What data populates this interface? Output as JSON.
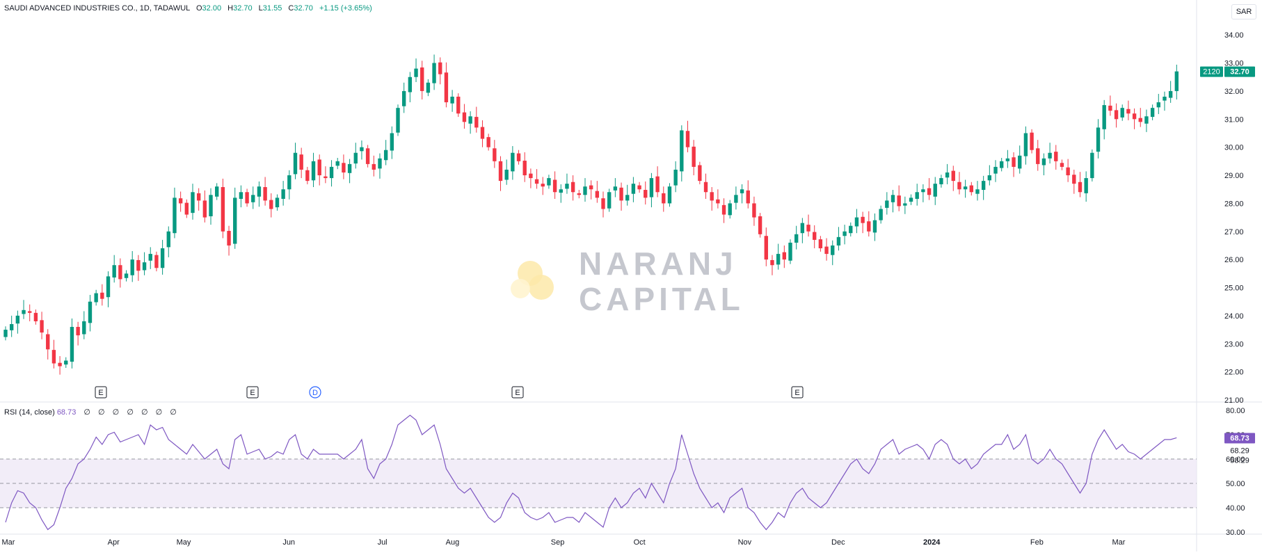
{
  "header": {
    "symbol": "SAUDI ADVANCED INDUSTRIES CO., 1D, TADAWUL",
    "open_label": "O",
    "open": "32.00",
    "high_label": "H",
    "high": "32.70",
    "low_label": "L",
    "low": "31.55",
    "close_label": "C",
    "close": "32.70",
    "change": "+1.15 (+3.65%)"
  },
  "currency": "SAR",
  "watermark": {
    "line1": "NARANJ",
    "line2": "CAPITAL"
  },
  "last_price": {
    "volume_tag": "2120",
    "price_tag": "32.70"
  },
  "events": [
    "E",
    "E",
    "D",
    "E",
    "E"
  ],
  "rsi": {
    "title": "RSI (14, close)",
    "value": "68.73",
    "extras": "∅ ∅ ∅ ∅ ∅ ∅ ∅",
    "ma_value": "68.29",
    "ma_value2": "58.29"
  },
  "colors": {
    "up": "#089981",
    "down": "#f23645",
    "rsi": "#7e57c2",
    "band": "#ede7f6"
  },
  "chart_data": [
    {
      "type": "candlestick",
      "title": "SAUDI ADVANCED INDUSTRIES CO., 1D, TADAWUL",
      "ylim": [
        21,
        34.5
      ],
      "y_ticks": [
        "34.00",
        "33.00",
        "32.00",
        "31.00",
        "30.00",
        "29.00",
        "28.00",
        "27.00",
        "26.00",
        "25.00",
        "24.00",
        "23.00",
        "22.00",
        "21.00"
      ],
      "x_ticks": [
        {
          "label": "Mar",
          "x": 0.0
        },
        {
          "label": "Apr",
          "x": 0.09
        },
        {
          "label": "May",
          "x": 0.15
        },
        {
          "label": "Jun",
          "x": 0.24
        },
        {
          "label": "Jul",
          "x": 0.32
        },
        {
          "label": "Aug",
          "x": 0.38
        },
        {
          "label": "Sep",
          "x": 0.47
        },
        {
          "label": "Oct",
          "x": 0.54
        },
        {
          "label": "Nov",
          "x": 0.63
        },
        {
          "label": "Dec",
          "x": 0.71
        },
        {
          "label": "2024",
          "x": 0.79
        },
        {
          "label": "Feb",
          "x": 0.88
        },
        {
          "label": "Mar",
          "x": 0.95
        }
      ],
      "close_path": [
        23.5,
        23.7,
        24.0,
        24.2,
        24.1,
        23.8,
        23.4,
        22.8,
        22.3,
        22.2,
        22.4,
        23.6,
        23.3,
        23.8,
        24.5,
        24.8,
        24.6,
        25.4,
        25.8,
        25.3,
        25.5,
        26.0,
        25.6,
        25.9,
        26.2,
        25.7,
        26.4,
        27.0,
        28.2,
        28.0,
        27.6,
        28.4,
        28.1,
        27.5,
        28.3,
        28.6,
        27.0,
        26.5,
        28.2,
        28.4,
        28.0,
        28.3,
        28.6,
        28.1,
        27.8,
        28.2,
        28.5,
        29.0,
        29.8,
        29.2,
        28.8,
        29.5,
        29.0,
        28.9,
        29.3,
        29.5,
        29.1,
        29.4,
        29.8,
        30.0,
        29.4,
        29.2,
        29.6,
        29.9,
        30.5,
        31.4,
        32.0,
        32.5,
        32.8,
        32.0,
        32.3,
        33.0,
        32.6,
        31.6,
        31.8,
        31.2,
        30.9,
        31.1,
        30.7,
        30.3,
        30.0,
        29.5,
        28.8,
        29.2,
        29.8,
        29.5,
        29.0,
        28.9,
        28.7,
        28.6,
        28.9,
        28.4,
        28.5,
        28.7,
        28.4,
        28.3,
        28.6,
        28.5,
        28.2,
        27.8,
        28.4,
        28.6,
        28.1,
        28.3,
        28.7,
        28.5,
        28.2,
        28.9,
        28.4,
        28.0,
        28.6,
        29.2,
        30.6,
        30.0,
        29.3,
        28.8,
        28.4,
        28.1,
        28.0,
        27.6,
        28.0,
        28.3,
        28.5,
        28.0,
        27.5,
        26.9,
        26.0,
        25.8,
        26.2,
        26.0,
        26.6,
        26.9,
        27.3,
        27.0,
        26.7,
        26.4,
        26.2,
        26.5,
        26.8,
        27.0,
        27.2,
        27.5,
        27.3,
        27.0,
        27.4,
        27.8,
        28.1,
        28.3,
        27.9,
        28.0,
        28.2,
        28.4,
        28.5,
        28.3,
        28.7,
        28.9,
        29.1,
        28.8,
        28.5,
        28.6,
        28.4,
        28.5,
        28.8,
        29.0,
        29.3,
        29.5,
        29.6,
        29.3,
        29.7,
        30.5,
        29.9,
        29.4,
        29.6,
        29.8,
        29.5,
        29.3,
        29.0,
        28.7,
        28.4,
        28.9,
        29.8,
        30.7,
        31.5,
        31.3,
        31.0,
        31.4,
        31.2,
        31.0,
        30.9,
        31.1,
        31.4,
        31.6,
        31.8,
        32.0,
        32.7
      ]
    },
    {
      "type": "line",
      "title": "RSI (14, close)",
      "ylim": [
        30,
        80
      ],
      "y_ticks": [
        "80.00",
        "70.00",
        "60.00",
        "50.00",
        "40.00",
        "30.00"
      ],
      "bands": {
        "upper": 60,
        "middle": 50,
        "lower": 40
      },
      "values": [
        34,
        42,
        47,
        46,
        42,
        40,
        35,
        31,
        33,
        40,
        48,
        52,
        58,
        60,
        64,
        69,
        66,
        70,
        71,
        67,
        68,
        69,
        70,
        66,
        74,
        72,
        73,
        68,
        66,
        64,
        62,
        66,
        63,
        60,
        62,
        64,
        58,
        56,
        68,
        70,
        62,
        63,
        64,
        60,
        61,
        63,
        62,
        68,
        70,
        62,
        60,
        64,
        62,
        62,
        62,
        62,
        60,
        62,
        64,
        68,
        56,
        52,
        58,
        60,
        66,
        74,
        76,
        78,
        76,
        70,
        72,
        74,
        66,
        56,
        52,
        48,
        46,
        48,
        44,
        40,
        36,
        34,
        36,
        42,
        46,
        44,
        38,
        36,
        35,
        36,
        38,
        34,
        35,
        36,
        36,
        34,
        38,
        36,
        34,
        32,
        40,
        44,
        40,
        42,
        46,
        48,
        44,
        50,
        46,
        42,
        50,
        56,
        70,
        62,
        54,
        48,
        44,
        40,
        42,
        38,
        44,
        46,
        48,
        40,
        38,
        34,
        31,
        34,
        38,
        36,
        42,
        46,
        48,
        44,
        42,
        40,
        42,
        46,
        50,
        54,
        58,
        60,
        56,
        54,
        58,
        64,
        66,
        68,
        62,
        64,
        65,
        66,
        64,
        60,
        66,
        68,
        66,
        60,
        58,
        60,
        56,
        58,
        62,
        64,
        66,
        66,
        70,
        64,
        66,
        70,
        60,
        58,
        60,
        64,
        60,
        58,
        54,
        50,
        46,
        50,
        62,
        68,
        72,
        68,
        64,
        66,
        63,
        62,
        60,
        62,
        64,
        66,
        68,
        68,
        68.73
      ]
    }
  ]
}
